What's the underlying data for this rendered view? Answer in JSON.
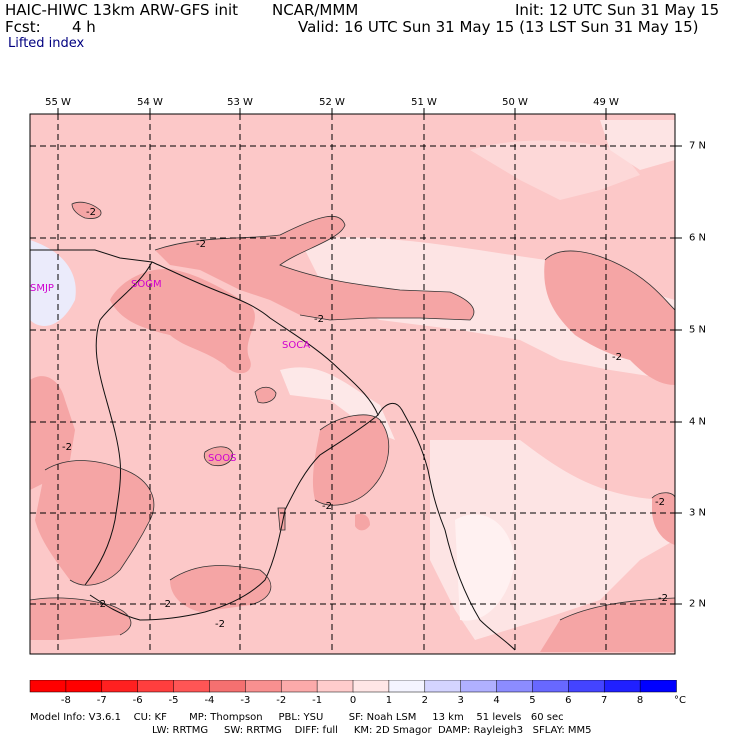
{
  "header": {
    "model": "HAIC-HIWC 13km ARW-GFS init",
    "org": "NCAR/MMM",
    "init": "Init: 12 UTC Sun 31 May 15",
    "fcst_label": "Fcst:",
    "fcst_value": "4 h",
    "valid": "Valid: 16 UTC Sun 31 May 15 (13 LST Sun 31 May 15)",
    "field": "Lifted index"
  },
  "map": {
    "lon_labels": [
      "55 W",
      "54 W",
      "53 W",
      "52 W",
      "51 W",
      "50 W",
      "49 W"
    ],
    "lat_labels": [
      "7 N",
      "6 N",
      "5 N",
      "4 N",
      "3 N",
      "2 N"
    ],
    "stations": [
      "SMJP",
      "SOGM",
      "SOCA",
      "SOOS"
    ],
    "contour_label": "-2"
  },
  "colorbar": {
    "labels": [
      "-8",
      "-7",
      "-6",
      "-5",
      "-4",
      "-3",
      "-2",
      "-1",
      "0",
      "1",
      "2",
      "3",
      "4",
      "5",
      "6",
      "7",
      "8"
    ],
    "unit": "°C",
    "colors": [
      "#ff0000",
      "#ff2020",
      "#ff3e3e",
      "#ff5555",
      "#f57070",
      "#f99090",
      "#fcaaaa",
      "#ffcccc",
      "#ffe6e6",
      "#f4f4ff",
      "#d4d4ff",
      "#b0b0ff",
      "#8c8cff",
      "#6868ff",
      "#4444ff",
      "#2020ff",
      "#0000ff"
    ]
  },
  "footer": {
    "line1": "Model Info: V3.6.1    CU: KF       MP: Thompson     PBL: YSU        SF: Noah LSM     13 km    51 levels   60 sec",
    "line2": "LW: RRTMG     SW: RRTMG    DIFF: full     KM: 2D Smagor  DAMP: Rayleigh3   SFLAY: MM5"
  }
}
